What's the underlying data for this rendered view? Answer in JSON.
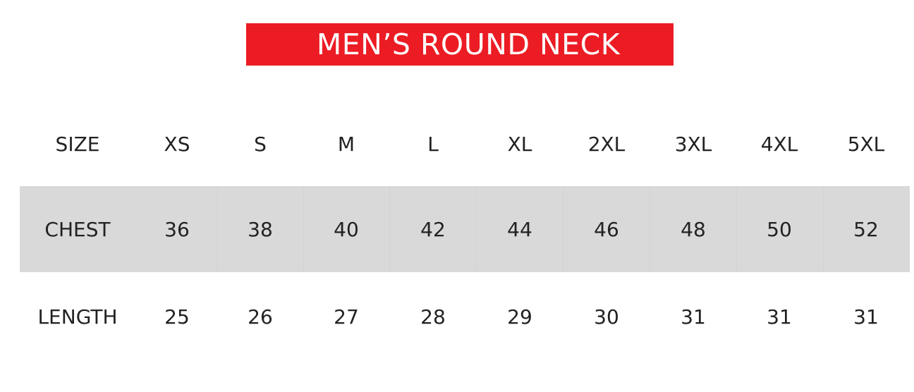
{
  "title": "MEN’S ROUND NECK",
  "colors": {
    "title_bg": "#ec1c24",
    "row_shade": "#d9d9d9"
  },
  "table": {
    "rows": [
      {
        "label": "SIZE",
        "values": [
          "XS",
          "S",
          "M",
          "L",
          "XL",
          "2XL",
          "3XL",
          "4XL",
          "5XL"
        ]
      },
      {
        "label": "CHEST",
        "values": [
          "36",
          "38",
          "40",
          "42",
          "44",
          "46",
          "48",
          "50",
          "52"
        ]
      },
      {
        "label": "LENGTH",
        "values": [
          "25",
          "26",
          "27",
          "28",
          "29",
          "30",
          "31",
          "31",
          "31"
        ]
      }
    ]
  }
}
